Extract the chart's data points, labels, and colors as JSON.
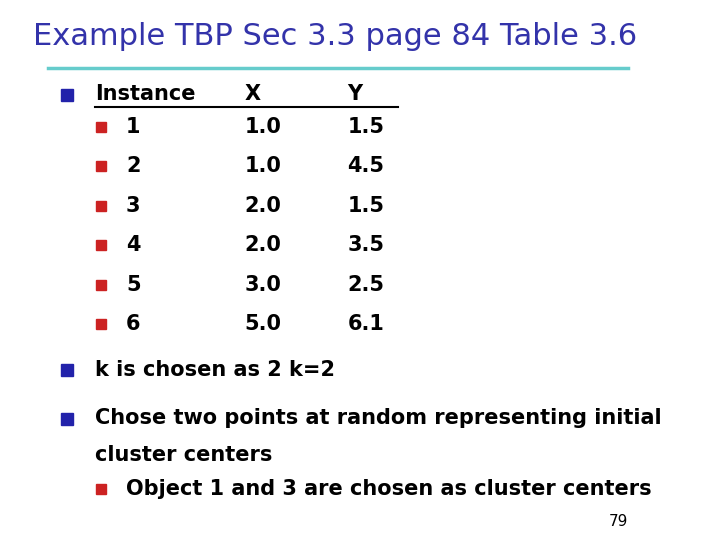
{
  "title": "Example TBP Sec 3.3 page 84 Table 3.6",
  "title_color": "#3333aa",
  "title_fontsize": 22,
  "bg_color": "#ffffff",
  "separator_color": "#66cccc",
  "bullet_color_blue": "#2222aa",
  "bullet_color_red": "#cc2222",
  "header": [
    "Instance",
    "X",
    "Y"
  ],
  "rows": [
    [
      "1",
      "1.0",
      "1.5"
    ],
    [
      "2",
      "1.0",
      "4.5"
    ],
    [
      "3",
      "2.0",
      "1.5"
    ],
    [
      "4",
      "2.0",
      "3.5"
    ],
    [
      "5",
      "3.0",
      "2.5"
    ],
    [
      "6",
      "5.0",
      "6.1"
    ]
  ],
  "bullet1": "k is chosen as 2 k=2",
  "bullet2_line1": "Chose two points at random representing initial",
  "bullet2_line2": "cluster centers",
  "sub_bullet": "Object 1 and 3 are chosen as cluster centers",
  "page_num": "79",
  "font_family": "DejaVu Sans",
  "main_fontsize": 15
}
